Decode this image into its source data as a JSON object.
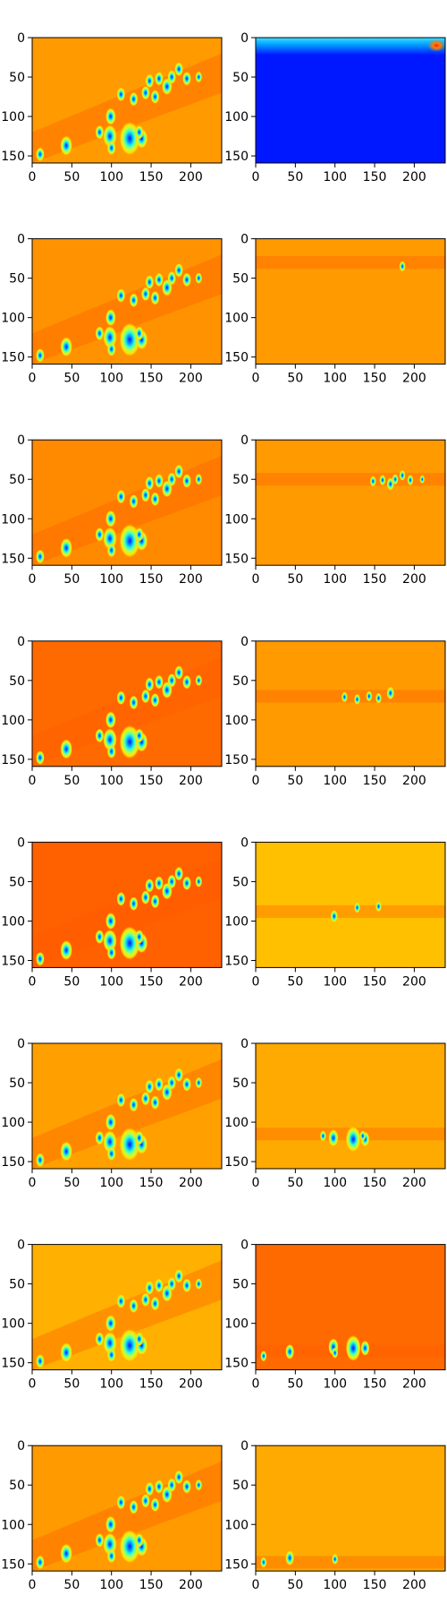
{
  "chart_data": {
    "type": "heatmap",
    "layout": {
      "rows": 8,
      "cols": 2
    },
    "colormap": "jet",
    "x_ticks": [
      0,
      50,
      100,
      150,
      200
    ],
    "y_ticks": [
      0,
      50,
      100,
      150
    ],
    "xlim": [
      0,
      239
    ],
    "ylim": [
      159,
      0
    ],
    "image_shape": [
      160,
      240
    ],
    "left_feature_map": {
      "description_level": "orange background with diagonal band of blobs",
      "blobs": [
        [
          10,
          148,
          1.0
        ],
        [
          43,
          137,
          1.4
        ],
        [
          85,
          120,
          1.0
        ],
        [
          98,
          125,
          1.6
        ],
        [
          99,
          100,
          1.2
        ],
        [
          123,
          128,
          2.4
        ],
        [
          138,
          128,
          1.4
        ],
        [
          112,
          72,
          1.0
        ],
        [
          128,
          78,
          1.0
        ],
        [
          143,
          70,
          1.0
        ],
        [
          155,
          75,
          1.0
        ],
        [
          148,
          55,
          1.0
        ],
        [
          160,
          52,
          1.0
        ],
        [
          170,
          62,
          1.2
        ],
        [
          176,
          50,
          1.0
        ],
        [
          185,
          40,
          1.0
        ],
        [
          195,
          52,
          1.0
        ],
        [
          210,
          50,
          0.8
        ],
        [
          135,
          120,
          1.0
        ],
        [
          100,
          140,
          1.0
        ]
      ]
    },
    "panels": [
      {
        "row": 0,
        "left": {
          "bg": "#ff9a00"
        },
        "right": {
          "bg": "#0018ff",
          "focus_y": 10
        }
      },
      {
        "row": 1,
        "left": {
          "bg": "#ff9200"
        },
        "right": {
          "bg": "#ff9a00",
          "focus_y": 30
        }
      },
      {
        "row": 2,
        "left": {
          "bg": "#ff8a00"
        },
        "right": {
          "bg": "#ff9a00",
          "focus_y": 50
        }
      },
      {
        "row": 3,
        "left": {
          "bg": "#ff6a00"
        },
        "right": {
          "bg": "#ff9a00",
          "focus_y": 70
        }
      },
      {
        "row": 4,
        "left": {
          "bg": "#ff6000"
        },
        "right": {
          "bg": "#ffc000",
          "focus_y": 88
        }
      },
      {
        "row": 5,
        "left": {
          "bg": "#ffa000"
        },
        "right": {
          "bg": "#ffaa00",
          "focus_y": 115
        }
      },
      {
        "row": 6,
        "left": {
          "bg": "#ffb000"
        },
        "right": {
          "bg": "#ff6a00",
          "focus_y": 135
        }
      },
      {
        "row": 7,
        "left": {
          "bg": "#ff9a00"
        },
        "right": {
          "bg": "#ffaa00",
          "focus_y": 148
        }
      }
    ]
  }
}
